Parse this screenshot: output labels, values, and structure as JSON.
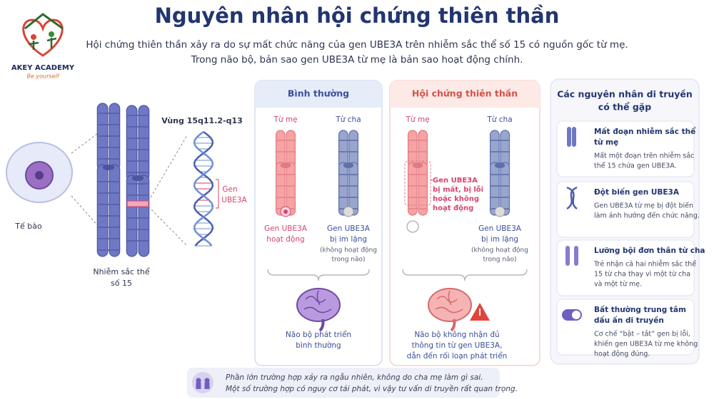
{
  "logo": {
    "name": "AKEY ACADEMY",
    "slogan": "Be yourself"
  },
  "header": {
    "title": "Nguyên nhân hội chứng thiên thần",
    "subtitle": [
      "Hội chứng thiên thần xảy ra do sự mất chức năng của gen UBE3A trên nhiễm sắc thể số 15 có nguồn gốc từ mẹ.",
      "Trong não bộ, bản sao gen UBE3A từ mẹ là bản sao hoạt động chính."
    ]
  },
  "diagram": {
    "cell": "Tế bào",
    "chromosome": [
      "Nhiễm sắc thể",
      "số 15"
    ],
    "region": "Vùng 15q11.2-q13",
    "gene": [
      "Gen",
      "UBE3A"
    ]
  },
  "panels": [
    {
      "title": "Bình thường",
      "mother": "Từ mẹ",
      "father": "Từ cha",
      "mother_gene": [
        "Gen UBE3A",
        "hoạt động"
      ],
      "father_gene": [
        "Gen UBE3A",
        "bị im lặng"
      ],
      "father_note": [
        "(không hoạt động",
        "trong não)"
      ],
      "brain": [
        "Não bộ phát triển",
        "bình thường"
      ]
    },
    {
      "title": "Hội chứng thiên thần",
      "mother": "Từ mẹ",
      "father": "Từ cha",
      "mother_gene": [
        "Gen UBE3A",
        "bị mất, bị lỗi",
        "hoặc không",
        "hoạt động"
      ],
      "father_gene": [
        "Gen UBE3A",
        "bị im lặng"
      ],
      "father_note": [
        "(không hoạt động",
        "trong não)"
      ],
      "brain": [
        "Não bộ không nhận đủ",
        "thông tin từ gen UBE3A,",
        "dẫn đến rối loạn phát triển"
      ]
    }
  ],
  "causes": {
    "title": [
      "Các nguyên nhân di truyền",
      "có thể gặp"
    ],
    "items": [
      {
        "title": [
          "Mất đoạn nhiễm sắc thể",
          "từ mẹ"
        ],
        "text": [
          "Mất một đoạn trên nhiễm sắc",
          "thể 15 chứa gen UBE3A."
        ]
      },
      {
        "title": [
          "Đột biến gen UBE3A"
        ],
        "text": [
          "Gen UBE3A từ mẹ bị đột biến",
          "làm ảnh hưởng đến chức năng."
        ]
      },
      {
        "title": [
          "Lưỡng bội đơn thân từ cha"
        ],
        "text": [
          "Trẻ nhận cả hai nhiễm sắc thể",
          "15 từ cha thay vì một từ cha",
          "và một từ mẹ."
        ]
      },
      {
        "title": [
          "Bất thường trung tâm",
          "dấu ấn di truyền"
        ],
        "text": [
          "Cơ chế “bật – tắt” gen bị lỗi,",
          "khiến gen UBE3A từ mẹ không",
          "hoạt động đúng."
        ]
      }
    ]
  },
  "footer": [
    "Phần lớn trường hợp xảy ra ngẫu nhiên, không do cha mẹ làm gì sai.",
    "Một số trường hợp có nguy cơ tái phát, vì vậy tư vấn di truyền rất quan trọng."
  ]
}
